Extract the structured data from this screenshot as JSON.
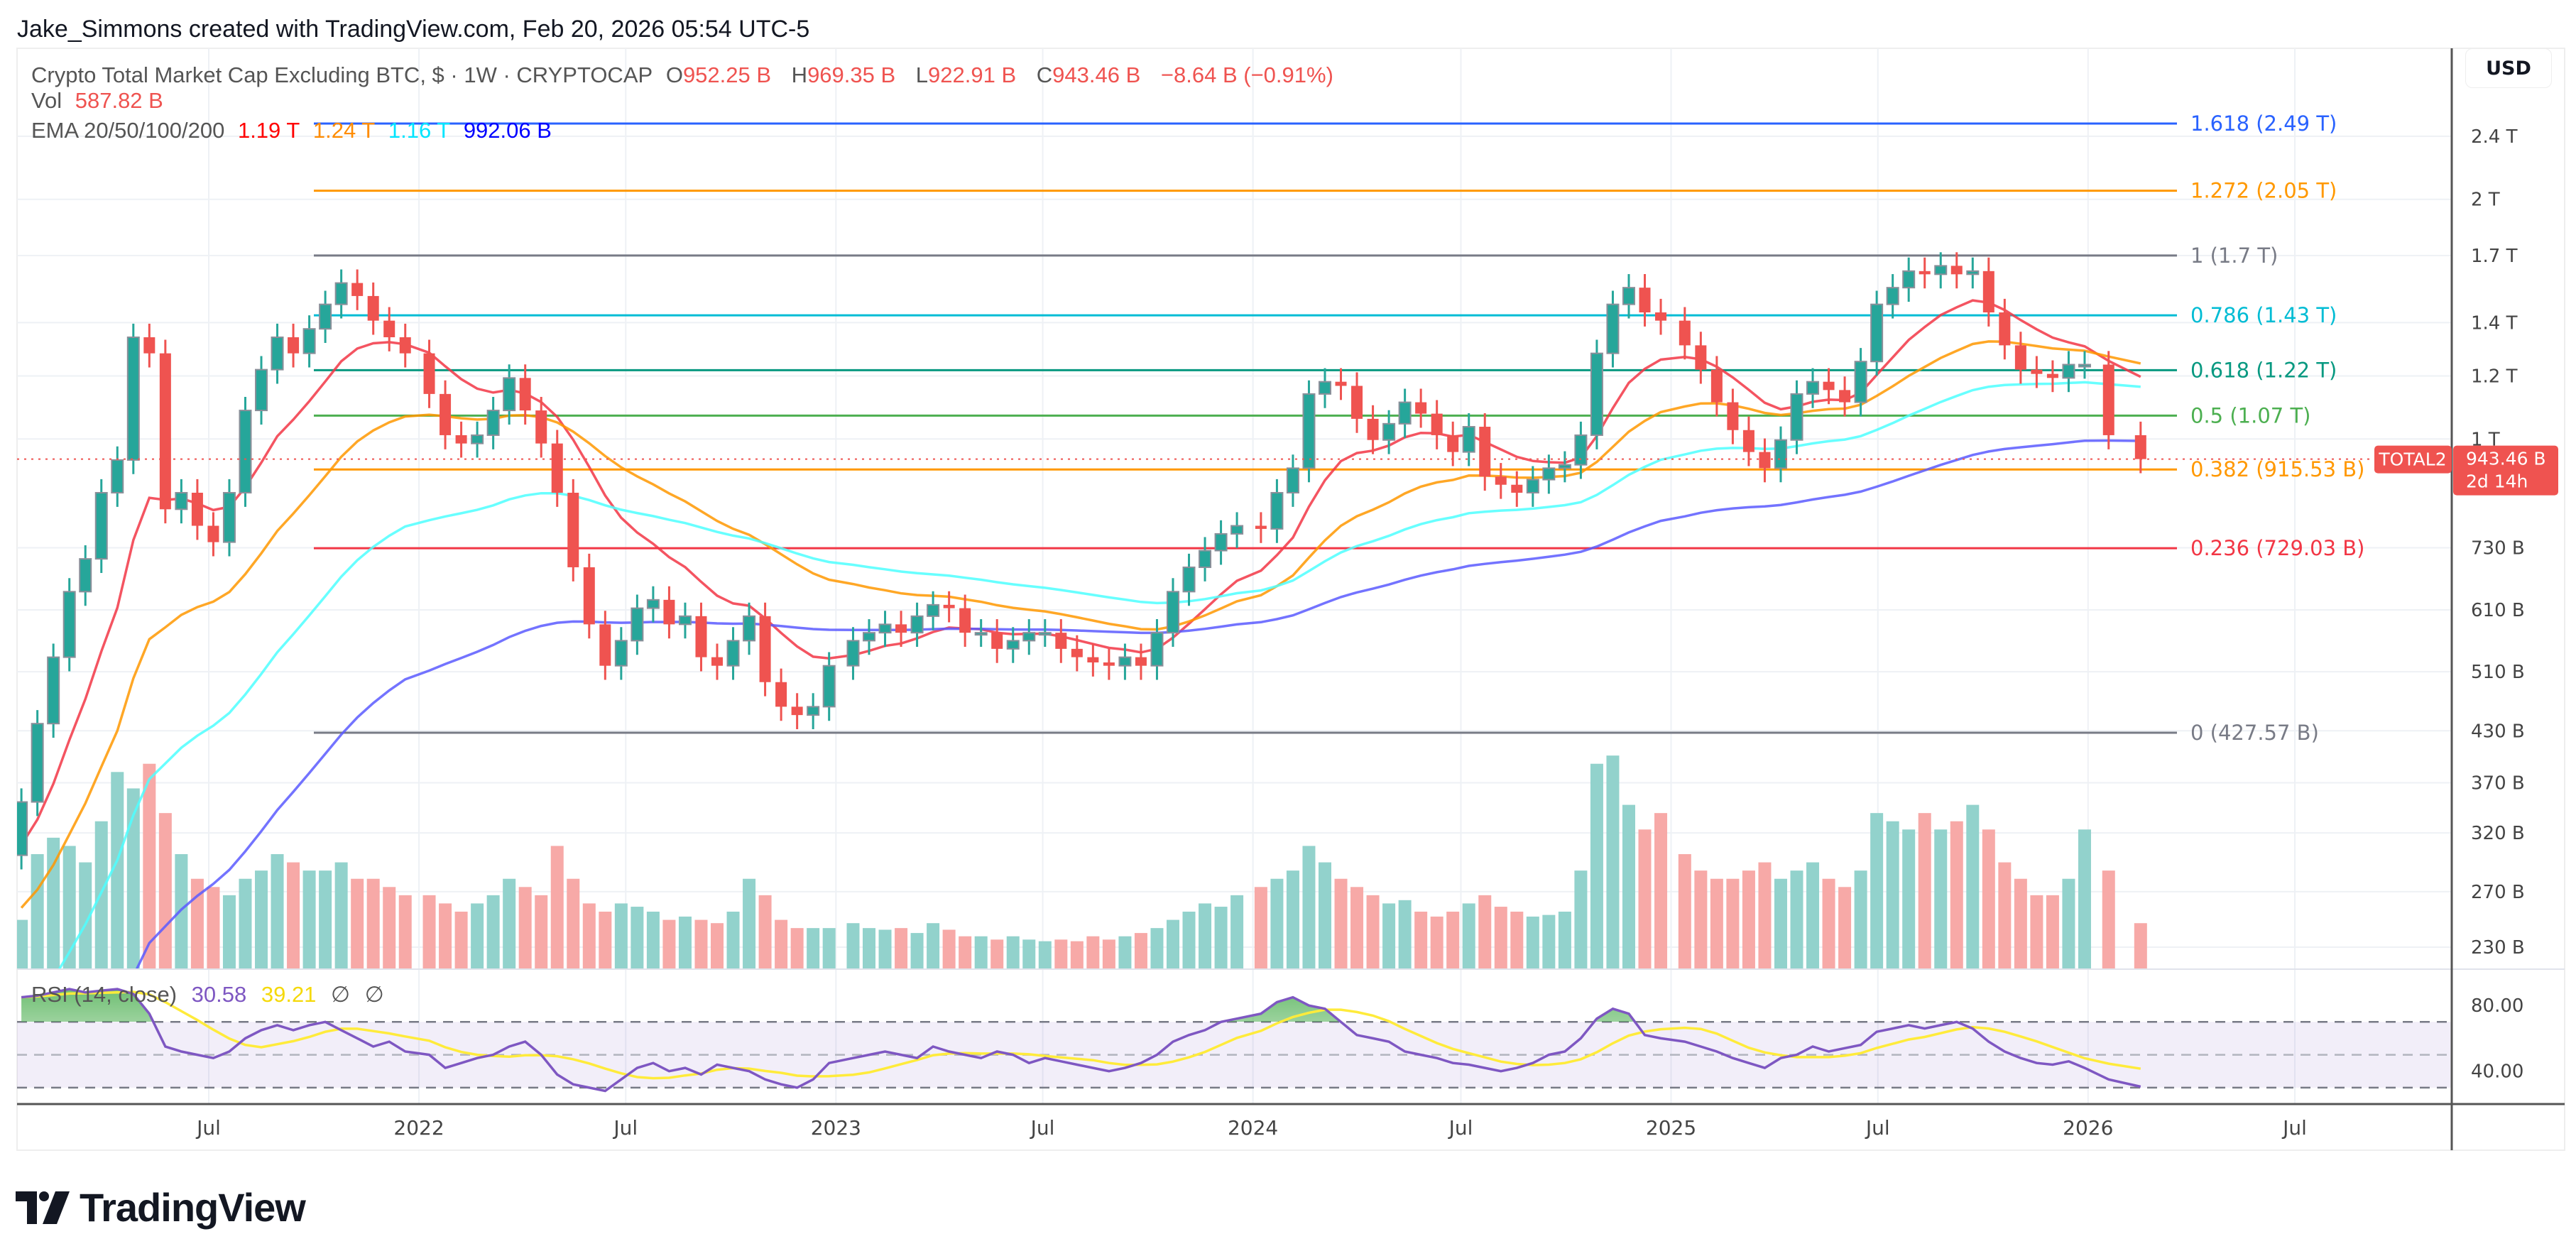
{
  "credit": "Jake_Simmons created with TradingView.com, Feb 20, 2026 05:54 UTC-5",
  "legend": {
    "symbol": "Crypto Total Market Cap Excluding BTC, $ · 1W · CRYPTOCAP",
    "o_label": "O",
    "o": "952.25 B",
    "h_label": "H",
    "h": "969.35 B",
    "l_label": "L",
    "l": "922.91 B",
    "c_label": "C",
    "c": "943.46 B",
    "change": "−8.64 B (−0.91%)",
    "vol_label": "Vol",
    "vol": "587.82 B",
    "ema_label": "EMA 20/50/100/200",
    "ema20": "1.19 T",
    "ema50": "1.24 T",
    "ema100": "1.16 T",
    "ema200": "992.06 B"
  },
  "rsi_legend": {
    "label": "RSI (14, close)",
    "rsi": "30.58",
    "ma": "39.21",
    "na1": "∅",
    "na2": "∅"
  },
  "currency": "USD",
  "ticker_tag": "TOTAL2",
  "last_price": "943.46 B",
  "countdown": "2d 14h",
  "logo_text": "TradingView",
  "colors": {
    "up": "#26a69a",
    "down": "#ef5350",
    "ema20": "#f23645",
    "ema50": "#ff9800",
    "ema100": "#00ffff",
    "ema200": "#0000ff",
    "rsi": "#7e57c2",
    "rsi_ma": "#ffeb3b"
  },
  "chart_data": {
    "type": "candlestick",
    "title": "Crypto Total Market Cap Excluding BTC, $ · 1W · CRYPTOCAP",
    "y_scale": "log",
    "y_unit": "B USD",
    "grid": true,
    "price_ticks": [
      {
        "label": "2.4 T",
        "value": 2400
      },
      {
        "label": "2 T",
        "value": 2000
      },
      {
        "label": "1.7 T",
        "value": 1700
      },
      {
        "label": "1.4 T",
        "value": 1400
      },
      {
        "label": "1.2 T",
        "value": 1200
      },
      {
        "label": "1 T",
        "value": 1000
      },
      {
        "label": "730 B",
        "value": 730
      },
      {
        "label": "610 B",
        "value": 610
      },
      {
        "label": "510 B",
        "value": 510
      },
      {
        "label": "430 B",
        "value": 430
      },
      {
        "label": "370 B",
        "value": 370
      },
      {
        "label": "320 B",
        "value": 320
      },
      {
        "label": "270 B",
        "value": 270
      },
      {
        "label": "230 B",
        "value": 230
      }
    ],
    "rsi_ticks": [
      {
        "label": "80.00",
        "value": 80
      },
      {
        "label": "40.00",
        "value": 40
      }
    ],
    "time_ticks": [
      {
        "label": "Jul",
        "date": "2021-07-01"
      },
      {
        "label": "2022",
        "date": "2022-01-01"
      },
      {
        "label": "Jul",
        "date": "2022-07-01"
      },
      {
        "label": "2023",
        "date": "2023-01-01"
      },
      {
        "label": "Jul",
        "date": "2023-07-01"
      },
      {
        "label": "2024",
        "date": "2024-01-01"
      },
      {
        "label": "Jul",
        "date": "2024-07-01"
      },
      {
        "label": "2025",
        "date": "2025-01-01"
      },
      {
        "label": "Jul",
        "date": "2025-07-01"
      },
      {
        "label": "2026",
        "date": "2026-01-01"
      },
      {
        "label": "Jul",
        "date": "2026-07-01"
      }
    ],
    "fib_levels": [
      {
        "label": "1.618 (2.49 T)",
        "value": 2490,
        "color": "#2962ff"
      },
      {
        "label": "1.272 (2.05 T)",
        "value": 2050,
        "color": "#ff9800"
      },
      {
        "label": "1 (1.7 T)",
        "value": 1700,
        "color": "#787b86"
      },
      {
        "label": "0.786 (1.43 T)",
        "value": 1430,
        "color": "#00bcd4"
      },
      {
        "label": "0.618 (1.22 T)",
        "value": 1220,
        "color": "#089981"
      },
      {
        "label": "0.5 (1.07 T)",
        "value": 1070,
        "color": "#4caf50"
      },
      {
        "label": "0.382 (915.53 B)",
        "value": 915.53,
        "color": "#ff9800"
      },
      {
        "label": "0.236 (729.03 B)",
        "value": 729.03,
        "color": "#f23645"
      },
      {
        "label": "0 (427.57 B)",
        "value": 427.57,
        "color": "#787b86"
      }
    ],
    "dates": [
      "2021-01-18",
      "2021-02-01",
      "2021-02-15",
      "2021-03-01",
      "2021-03-15",
      "2021-03-29",
      "2021-04-12",
      "2021-04-26",
      "2021-05-10",
      "2021-05-24",
      "2021-06-07",
      "2021-06-21",
      "2021-07-05",
      "2021-07-19",
      "2021-08-02",
      "2021-08-16",
      "2021-08-30",
      "2021-09-13",
      "2021-09-27",
      "2021-10-11",
      "2021-10-25",
      "2021-11-08",
      "2021-11-22",
      "2021-12-06",
      "2021-12-20",
      "2022-01-10",
      "2022-01-24",
      "2022-02-07",
      "2022-02-21",
      "2022-03-07",
      "2022-03-21",
      "2022-04-04",
      "2022-04-18",
      "2022-05-02",
      "2022-05-16",
      "2022-05-30",
      "2022-06-13",
      "2022-06-27",
      "2022-07-11",
      "2022-07-25",
      "2022-08-08",
      "2022-08-22",
      "2022-09-05",
      "2022-09-19",
      "2022-10-03",
      "2022-10-17",
      "2022-10-31",
      "2022-11-14",
      "2022-11-28",
      "2022-12-12",
      "2022-12-26",
      "2023-01-16",
      "2023-01-30",
      "2023-02-13",
      "2023-02-27",
      "2023-03-13",
      "2023-03-27",
      "2023-04-10",
      "2023-04-24",
      "2023-05-08",
      "2023-05-22",
      "2023-06-05",
      "2023-06-19",
      "2023-07-03",
      "2023-07-17",
      "2023-07-31",
      "2023-08-14",
      "2023-08-28",
      "2023-09-11",
      "2023-09-25",
      "2023-10-09",
      "2023-10-23",
      "2023-11-06",
      "2023-11-20",
      "2023-12-04",
      "2023-12-18",
      "2024-01-08",
      "2024-01-22",
      "2024-02-05",
      "2024-02-19",
      "2024-03-04",
      "2024-03-18",
      "2024-04-01",
      "2024-04-15",
      "2024-04-29",
      "2024-05-13",
      "2024-05-27",
      "2024-06-10",
      "2024-06-24",
      "2024-07-08",
      "2024-07-22",
      "2024-08-05",
      "2024-08-19",
      "2024-09-02",
      "2024-09-16",
      "2024-09-30",
      "2024-10-14",
      "2024-10-28",
      "2024-11-11",
      "2024-11-25",
      "2024-12-09",
      "2024-12-23",
      "2025-01-13",
      "2025-01-27",
      "2025-02-10",
      "2025-02-24",
      "2025-03-10",
      "2025-03-24",
      "2025-04-07",
      "2025-04-21",
      "2025-05-05",
      "2025-05-19",
      "2025-06-02",
      "2025-06-16",
      "2025-06-30",
      "2025-07-14",
      "2025-07-28",
      "2025-08-11",
      "2025-08-25",
      "2025-09-08",
      "2025-09-22",
      "2025-10-06",
      "2025-10-20",
      "2025-11-03",
      "2025-11-17",
      "2025-12-01",
      "2025-12-15",
      "2025-12-29",
      "2026-01-19",
      "2026-02-16"
    ],
    "close": [
      350,
      439,
      532,
      643,
      707,
      856,
      941,
      1342,
      1281,
      816,
      856,
      778,
      742,
      856,
      1086,
      1222,
      1342,
      1281,
      1375,
      1476,
      1570,
      1512,
      1408,
      1342,
      1281,
      1139,
      1011,
      987,
      1011,
      1086,
      1193,
      1086,
      987,
      856,
      690,
      585,
      519,
      558,
      613,
      628,
      585,
      599,
      532,
      519,
      558,
      599,
      495,
      461,
      450,
      461,
      519,
      558,
      571,
      585,
      571,
      599,
      619,
      613,
      571,
      571,
      545,
      558,
      571,
      571,
      545,
      532,
      524,
      519,
      532,
      519,
      571,
      643,
      690,
      724,
      760,
      778,
      771,
      856,
      919,
      1139,
      1180,
      1166,
      1060,
      997,
      1045,
      1112,
      1076,
      1011,
      963,
      1036,
      897,
      876,
      856,
      889,
      919,
      928,
      1011,
      1281,
      1476,
      1549,
      1442,
      1408,
      1311,
      1222,
      1112,
      1026,
      963,
      919,
      997,
      1139,
      1180,
      1152,
      1112,
      1251,
      1476,
      1549,
      1625,
      1610,
      1650,
      1610,
      1625,
      1442,
      1311,
      1222,
      1207,
      1193,
      1240,
      1240,
      1011,
      943.46
    ],
    "volume": [
      630,
      1470,
      1680,
      1575,
      1365,
      1890,
      2520,
      2310,
      2625,
      1995,
      1470,
      1155,
      1050,
      945,
      1155,
      1260,
      1470,
      1365,
      1260,
      1260,
      1365,
      1155,
      1155,
      1050,
      945,
      945,
      840,
      735,
      840,
      945,
      1155,
      1050,
      945,
      1575,
      1155,
      840,
      735,
      840,
      798,
      735,
      630,
      672,
      630,
      588,
      735,
      1155,
      945,
      630,
      525,
      525,
      525,
      588,
      525,
      504,
      525,
      462,
      588,
      504,
      420,
      420,
      378,
      420,
      378,
      357,
      378,
      357,
      420,
      378,
      420,
      462,
      525,
      630,
      735,
      840,
      798,
      945,
      1050,
      1155,
      1260,
      1575,
      1365,
      1155,
      1050,
      945,
      840,
      882,
      735,
      672,
      735,
      840,
      945,
      798,
      735,
      672,
      693,
      735,
      1260,
      2625,
      2730,
      2100,
      1785,
      1995,
      1470,
      1260,
      1155,
      1155,
      1260,
      1365,
      1155,
      1260,
      1365,
      1155,
      1050,
      1260,
      1995,
      1890,
      1785,
      1995,
      1785,
      1890,
      2100,
      1785,
      1365,
      1155,
      945,
      945,
      1155,
      1785,
      1260,
      587.82
    ],
    "rsi": [
      85,
      86,
      88,
      90,
      88,
      89,
      90,
      87,
      75,
      55,
      52,
      50,
      48,
      52,
      60,
      65,
      68,
      65,
      68,
      70,
      65,
      60,
      55,
      58,
      52,
      50,
      42,
      45,
      48,
      50,
      55,
      58,
      50,
      38,
      32,
      30,
      28,
      35,
      42,
      45,
      40,
      42,
      38,
      44,
      42,
      40,
      35,
      32,
      30,
      35,
      45,
      48,
      50,
      52,
      50,
      48,
      55,
      52,
      50,
      48,
      52,
      50,
      45,
      48,
      46,
      44,
      42,
      40,
      42,
      45,
      50,
      58,
      62,
      65,
      70,
      72,
      75,
      82,
      85,
      80,
      78,
      70,
      62,
      60,
      58,
      52,
      50,
      48,
      45,
      44,
      42,
      40,
      42,
      45,
      50,
      52,
      60,
      72,
      78,
      75,
      62,
      60,
      58,
      55,
      52,
      48,
      45,
      42,
      48,
      50,
      55,
      52,
      54,
      56,
      64,
      66,
      68,
      66,
      68,
      70,
      66,
      58,
      52,
      48,
      45,
      44,
      46,
      42,
      35,
      30.58
    ],
    "rsi_bands": {
      "upper": 70,
      "middle": 50,
      "lower": 30
    }
  }
}
